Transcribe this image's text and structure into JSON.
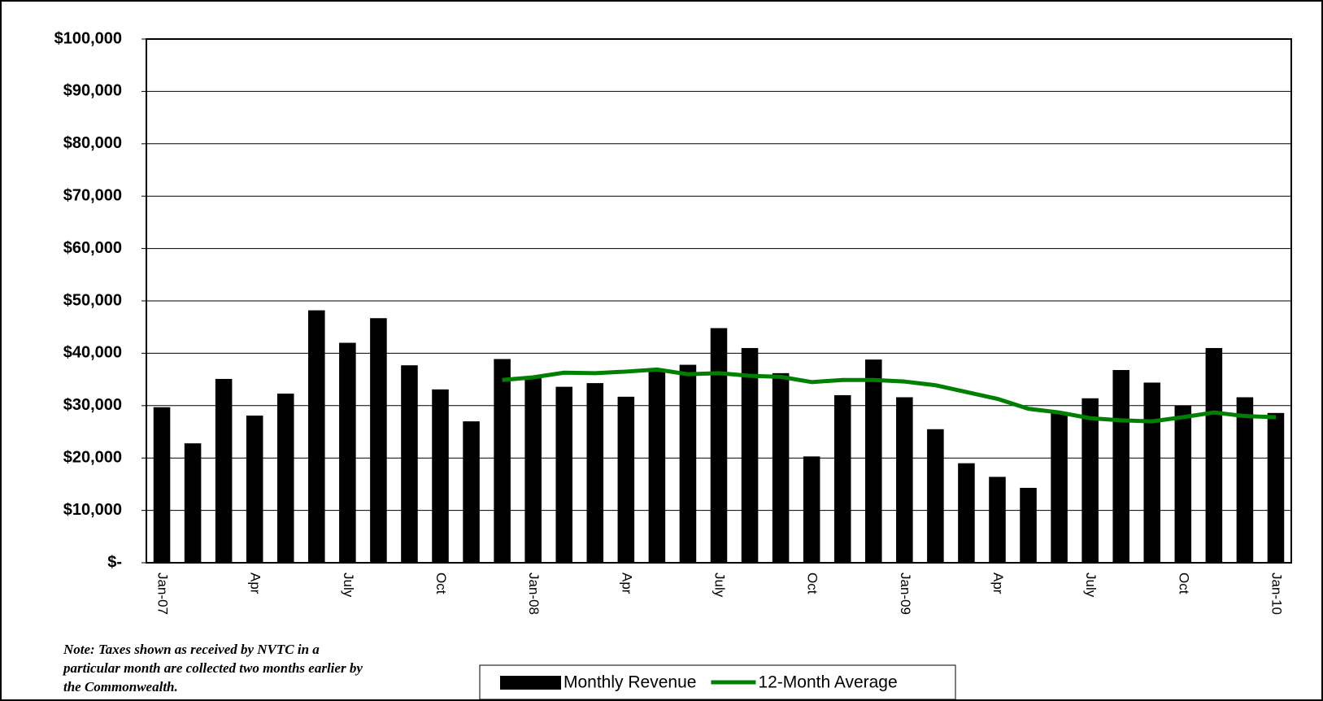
{
  "chart_data": {
    "type": "bar",
    "categories": [
      "Jan-07",
      null,
      null,
      "Apr",
      null,
      null,
      "July",
      null,
      null,
      "Oct",
      null,
      null,
      "Jan-08",
      null,
      null,
      "Apr",
      null,
      null,
      "July",
      null,
      null,
      "Oct",
      null,
      null,
      "Jan-09",
      null,
      null,
      "Apr",
      null,
      null,
      "July",
      null,
      null,
      "Oct",
      null,
      null,
      "Jan-10"
    ],
    "series": [
      {
        "name": "Monthly Revenue",
        "type": "bar",
        "color": "#000000",
        "values": [
          29700,
          22800,
          35100,
          28100,
          32300,
          48200,
          42000,
          46700,
          37700,
          33100,
          27000,
          38900,
          35500,
          33600,
          34300,
          31700,
          36800,
          37800,
          44800,
          41000,
          36200,
          20300,
          32000,
          38800,
          31600,
          25500,
          19000,
          16400,
          14300,
          28800,
          31400,
          36800,
          34400,
          30000,
          41000,
          31600,
          28600
        ]
      },
      {
        "name": "12-Month Average",
        "type": "line",
        "color": "#008000",
        "values": [
          null,
          null,
          null,
          null,
          null,
          null,
          null,
          null,
          null,
          null,
          null,
          34900,
          35400,
          36300,
          36200,
          36500,
          36900,
          36000,
          36200,
          35700,
          35500,
          34500,
          34900,
          34900,
          34600,
          33900,
          32600,
          31300,
          29400,
          28700,
          27600,
          27200,
          27000,
          27800,
          28700,
          28000,
          27800
        ]
      }
    ],
    "ylim": [
      0,
      100000
    ],
    "yticks": [
      {
        "value": 0,
        "label": "$-"
      },
      {
        "value": 10000,
        "label": "$10,000"
      },
      {
        "value": 20000,
        "label": "$20,000"
      },
      {
        "value": 30000,
        "label": "$30,000"
      },
      {
        "value": 40000,
        "label": "$40,000"
      },
      {
        "value": 50000,
        "label": "$50,000"
      },
      {
        "value": 60000,
        "label": "$60,000"
      },
      {
        "value": 70000,
        "label": "$70,000"
      },
      {
        "value": 80000,
        "label": "$80,000"
      },
      {
        "value": 90000,
        "label": "$90,000"
      },
      {
        "value": 100000,
        "label": "$100,000"
      }
    ],
    "grid": true,
    "legend": "bottom",
    "note": "Note: Taxes shown as received by NVTC in a particular month are collected two months earlier by the Commonwealth."
  }
}
